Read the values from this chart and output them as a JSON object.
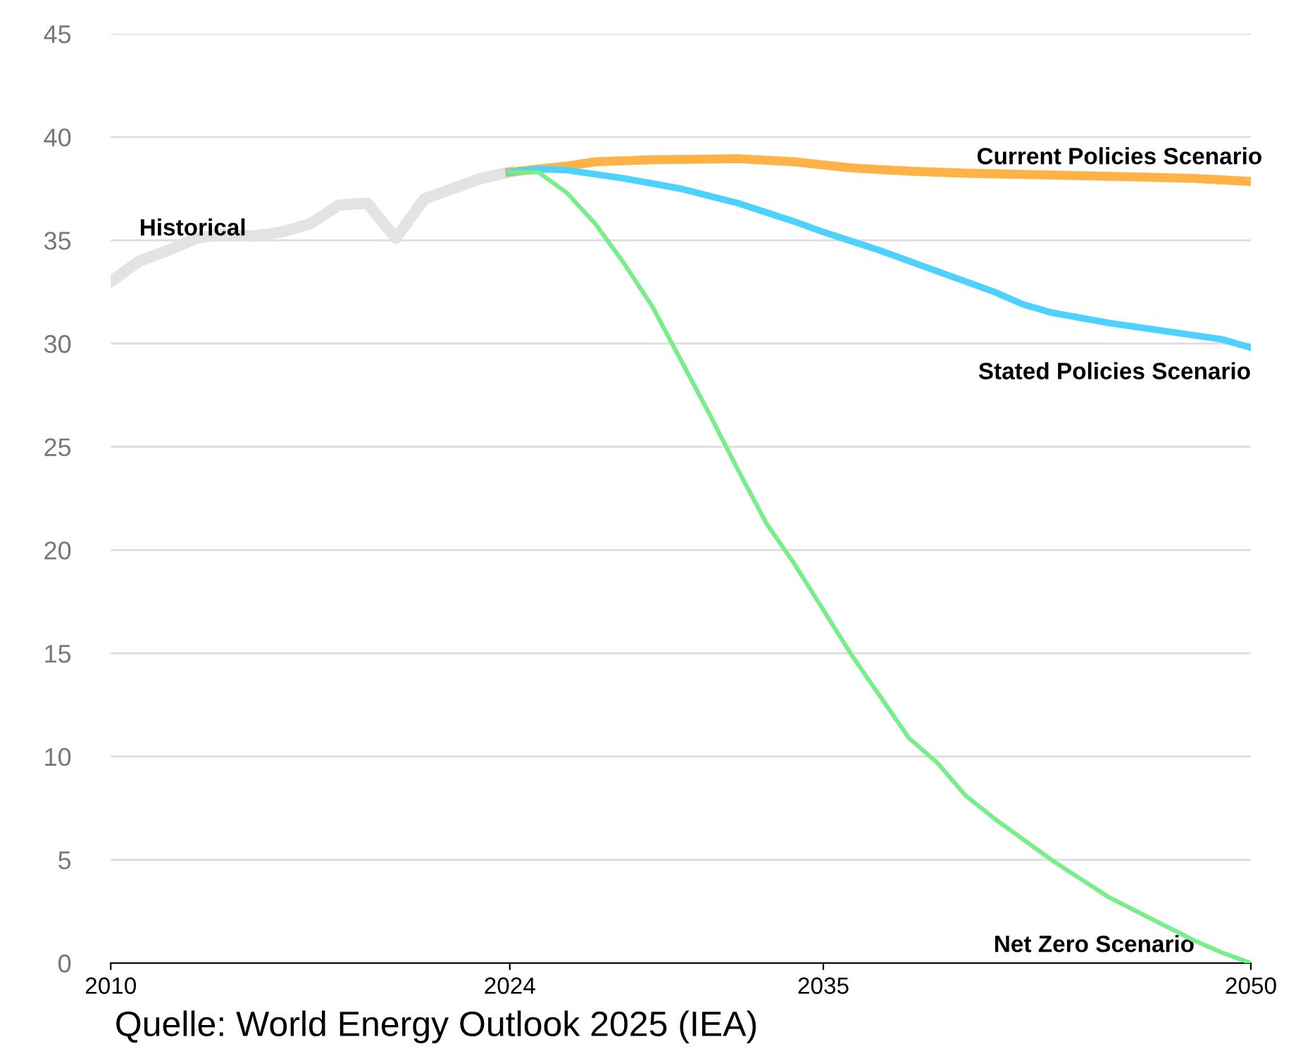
{
  "chart_data": {
    "type": "line",
    "xlim": [
      2010,
      2050
    ],
    "ylim": [
      0,
      45
    ],
    "xticks": [
      2010,
      2024,
      2035,
      2050
    ],
    "yticks": [
      0,
      5,
      10,
      15,
      20,
      25,
      30,
      35,
      40,
      45
    ],
    "grid": "y",
    "legend": false,
    "annotations": [
      "Quelle: World Energy Outlook 2025 (IEA)"
    ],
    "series": [
      {
        "name": "Historical",
        "color": "#e3e3e3",
        "x": [
          2010,
          2011,
          2012,
          2013,
          2014,
          2015,
          2016,
          2017,
          2018,
          2019,
          2020,
          2021,
          2022,
          2023,
          2024
        ],
        "values": [
          33.0,
          34.0,
          34.5,
          35.1,
          35.3,
          35.2,
          35.4,
          35.8,
          36.7,
          36.8,
          35.1,
          37.0,
          37.5,
          38.0,
          38.3
        ]
      },
      {
        "name": "Current Policies Scenario",
        "color": "#ffb347",
        "x": [
          2024,
          2026,
          2027,
          2029,
          2032,
          2034,
          2036,
          2038,
          2040,
          2045,
          2048,
          2050
        ],
        "values": [
          38.3,
          38.6,
          38.8,
          38.9,
          38.95,
          38.8,
          38.5,
          38.35,
          38.25,
          38.1,
          38.0,
          37.85
        ]
      },
      {
        "name": "Stated Policies Scenario",
        "color": "#4dd2ff",
        "x": [
          2024,
          2025,
          2026,
          2028,
          2030,
          2032,
          2034,
          2035,
          2037,
          2039,
          2041,
          2042,
          2043,
          2045,
          2047,
          2049,
          2050
        ],
        "values": [
          38.3,
          38.45,
          38.4,
          38.0,
          37.5,
          36.8,
          35.9,
          35.4,
          34.5,
          33.5,
          32.5,
          31.9,
          31.5,
          31.0,
          30.6,
          30.2,
          29.8
        ]
      },
      {
        "name": "Net Zero Scenario",
        "color": "#77ee88",
        "x": [
          2024,
          2025,
          2026,
          2027,
          2028,
          2029,
          2030,
          2031,
          2032,
          2033,
          2034,
          2035,
          2036,
          2037,
          2038,
          2039,
          2040,
          2041,
          2042,
          2043,
          2044,
          2045,
          2046,
          2047,
          2048,
          2049,
          2050
        ],
        "values": [
          38.3,
          38.3,
          37.3,
          35.8,
          33.9,
          31.8,
          29.2,
          26.6,
          23.9,
          21.3,
          19.3,
          17.1,
          14.9,
          12.9,
          10.9,
          9.7,
          8.1,
          7.0,
          6.0,
          5.0,
          4.1,
          3.2,
          2.5,
          1.8,
          1.1,
          0.5,
          0.0
        ]
      }
    ]
  }
}
